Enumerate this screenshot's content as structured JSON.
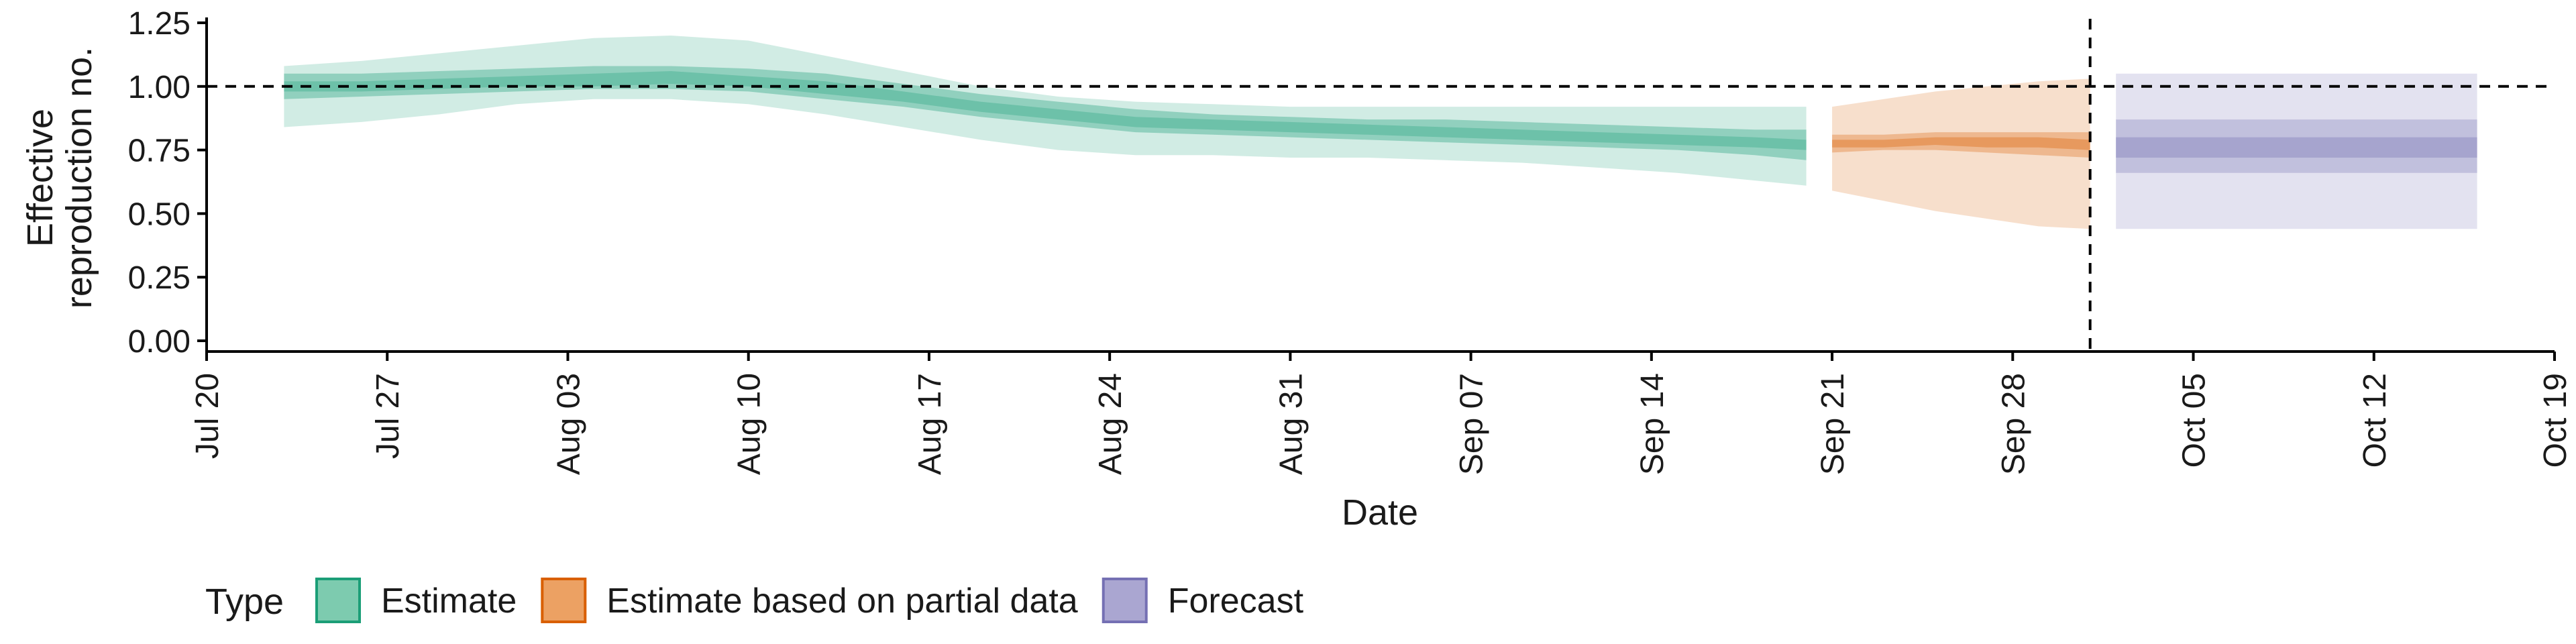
{
  "chart_data": {
    "type": "area",
    "xlabel": "Date",
    "ylabel": [
      "Effective",
      "reproduction no."
    ],
    "ylim": [
      0,
      1.25
    ],
    "yticks": [
      0,
      0.25,
      0.5,
      0.75,
      1.0,
      1.25
    ],
    "ytick_labels": [
      "0.00",
      "0.25",
      "0.50",
      "0.75",
      "1.00",
      "1.25"
    ],
    "xlim": [
      "2020-07-20",
      "2020-10-19"
    ],
    "xticks": [
      "2020-07-20",
      "2020-07-27",
      "2020-08-03",
      "2020-08-10",
      "2020-08-17",
      "2020-08-24",
      "2020-08-31",
      "2020-09-07",
      "2020-09-14",
      "2020-09-21",
      "2020-09-28",
      "2020-10-05",
      "2020-10-12",
      "2020-10-19"
    ],
    "xtick_labels": [
      "Jul 20",
      "Jul 27",
      "Aug 03",
      "Aug 10",
      "Aug 17",
      "Aug 24",
      "Aug 31",
      "Sep 07",
      "Sep 14",
      "Sep 21",
      "Sep 28",
      "Oct 05",
      "Oct 12",
      "Oct 19"
    ],
    "reference_line_y": 1.0,
    "vertical_line_x": "2020-10-01",
    "grid": false,
    "legend": {
      "title": "Type",
      "position": "bottom-left",
      "entries": [
        {
          "label": "Estimate",
          "fill": "#7dcbaf",
          "border": "#1b9e77"
        },
        {
          "label": "Estimate based on partial data",
          "fill": "#eca163",
          "border": "#d95f02"
        },
        {
          "label": "Forecast",
          "fill": "#aaa6d1",
          "border": "#7570b3"
        }
      ]
    },
    "series": [
      {
        "type": "Estimate",
        "color": "#1b9e77",
        "x": [
          "2020-07-23",
          "2020-07-26",
          "2020-07-29",
          "2020-08-01",
          "2020-08-04",
          "2020-08-07",
          "2020-08-10",
          "2020-08-13",
          "2020-08-16",
          "2020-08-19",
          "2020-08-22",
          "2020-08-25",
          "2020-08-28",
          "2020-08-31",
          "2020-09-03",
          "2020-09-06",
          "2020-09-09",
          "2020-09-12",
          "2020-09-15",
          "2020-09-18",
          "2020-09-20"
        ],
        "median": [
          1.0,
          1.0,
          1.01,
          1.02,
          1.03,
          1.04,
          1.02,
          1.0,
          0.96,
          0.92,
          0.89,
          0.86,
          0.85,
          0.84,
          0.83,
          0.82,
          0.81,
          0.8,
          0.79,
          0.78,
          0.77
        ],
        "lower_50": [
          0.98,
          0.98,
          0.99,
          1.0,
          1.0,
          1.01,
          1.0,
          0.97,
          0.94,
          0.9,
          0.87,
          0.84,
          0.83,
          0.82,
          0.81,
          0.8,
          0.79,
          0.78,
          0.77,
          0.76,
          0.75
        ],
        "upper_50": [
          1.02,
          1.02,
          1.03,
          1.04,
          1.05,
          1.06,
          1.04,
          1.02,
          0.98,
          0.94,
          0.91,
          0.88,
          0.87,
          0.86,
          0.85,
          0.84,
          0.83,
          0.82,
          0.81,
          0.8,
          0.79
        ],
        "lower_20": [
          0.95,
          0.96,
          0.97,
          0.98,
          0.99,
          0.99,
          0.98,
          0.95,
          0.92,
          0.88,
          0.85,
          0.82,
          0.81,
          0.8,
          0.79,
          0.78,
          0.77,
          0.76,
          0.75,
          0.73,
          0.71
        ],
        "upper_20": [
          1.05,
          1.05,
          1.06,
          1.07,
          1.08,
          1.08,
          1.07,
          1.05,
          1.01,
          0.97,
          0.94,
          0.91,
          0.89,
          0.88,
          0.87,
          0.87,
          0.86,
          0.85,
          0.84,
          0.83,
          0.83
        ],
        "lower_90": [
          0.84,
          0.86,
          0.89,
          0.93,
          0.95,
          0.95,
          0.93,
          0.89,
          0.84,
          0.79,
          0.75,
          0.73,
          0.73,
          0.72,
          0.72,
          0.71,
          0.7,
          0.68,
          0.66,
          0.63,
          0.61
        ],
        "upper_90": [
          1.08,
          1.1,
          1.13,
          1.16,
          1.19,
          1.2,
          1.18,
          1.12,
          1.06,
          1.0,
          0.96,
          0.94,
          0.93,
          0.92,
          0.92,
          0.92,
          0.92,
          0.92,
          0.92,
          0.92,
          0.92
        ]
      },
      {
        "type": "Estimate based on partial data",
        "color": "#d95f02",
        "x": [
          "2020-09-21",
          "2020-09-23",
          "2020-09-25",
          "2020-09-27",
          "2020-09-29",
          "2020-10-01"
        ],
        "median": [
          0.77,
          0.78,
          0.78,
          0.78,
          0.78,
          0.77
        ],
        "lower_50": [
          0.74,
          0.75,
          0.75,
          0.74,
          0.73,
          0.72
        ],
        "upper_50": [
          0.81,
          0.81,
          0.82,
          0.82,
          0.82,
          0.82
        ],
        "lower_20": [
          0.76,
          0.76,
          0.77,
          0.76,
          0.76,
          0.75
        ],
        "upper_20": [
          0.79,
          0.79,
          0.8,
          0.8,
          0.8,
          0.79
        ],
        "lower_90": [
          0.59,
          0.55,
          0.51,
          0.48,
          0.45,
          0.44
        ],
        "upper_90": [
          0.92,
          0.95,
          0.98,
          1.0,
          1.02,
          1.03
        ]
      },
      {
        "type": "Forecast",
        "color": "#7570b3",
        "x": [
          "2020-10-02",
          "2020-10-16"
        ],
        "median": [
          0.76,
          0.76
        ],
        "lower_50": [
          0.66,
          0.66
        ],
        "upper_50": [
          0.87,
          0.87
        ],
        "lower_20": [
          0.72,
          0.72
        ],
        "upper_20": [
          0.8,
          0.8
        ],
        "lower_90": [
          0.44,
          0.44
        ],
        "upper_90": [
          1.05,
          1.05
        ]
      }
    ]
  }
}
